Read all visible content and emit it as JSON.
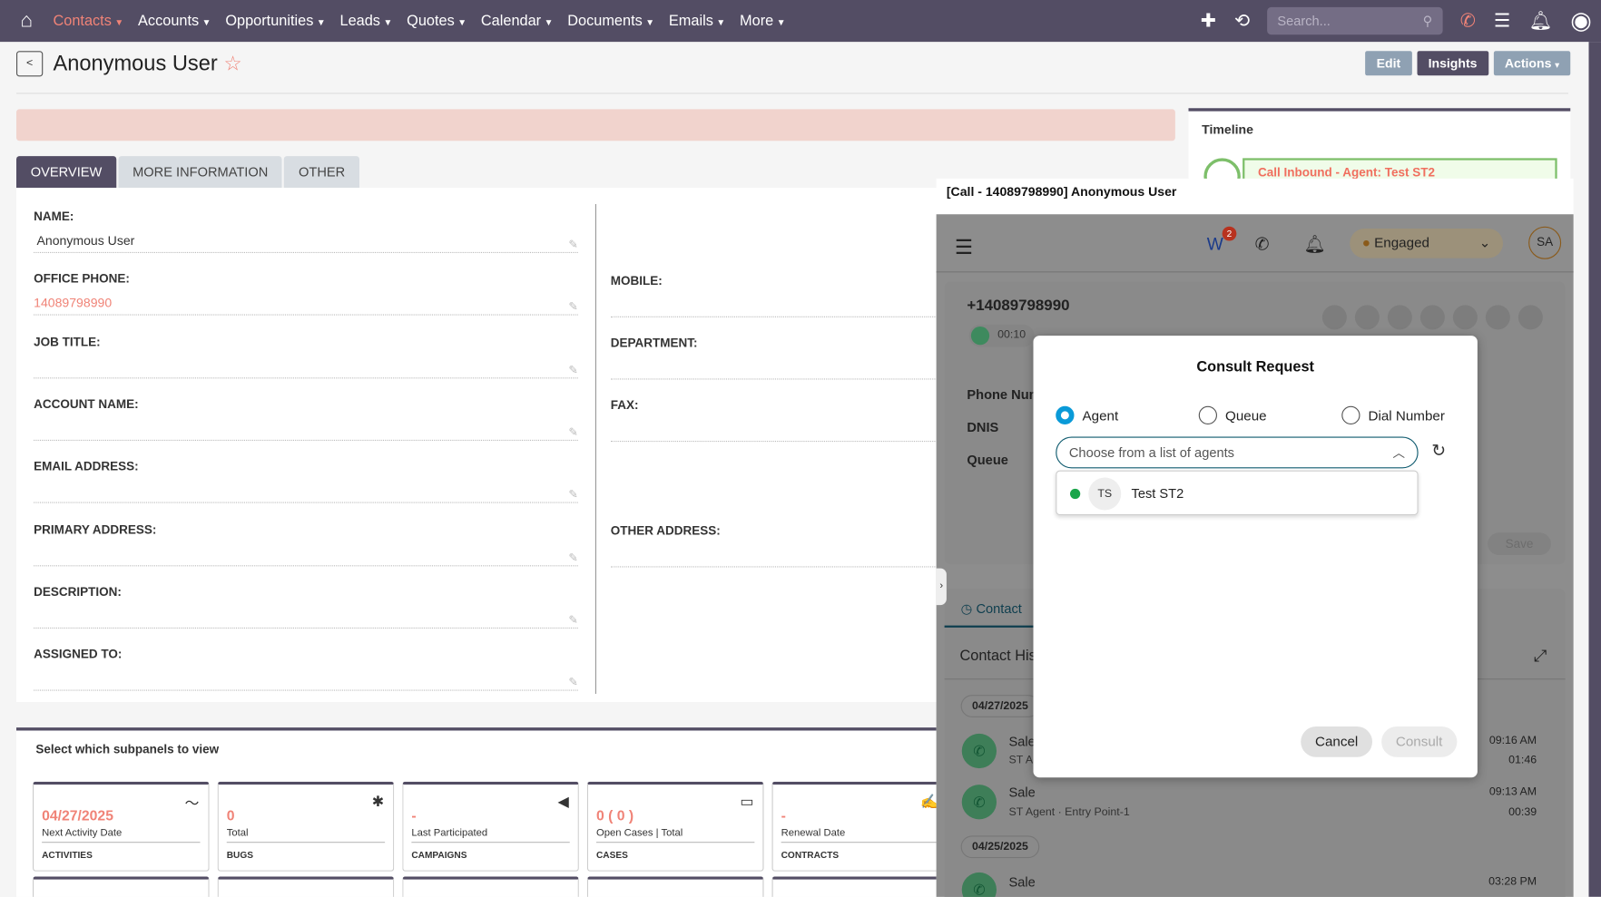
{
  "nav": {
    "items": [
      {
        "label": "Contacts",
        "active": true
      },
      {
        "label": "Accounts"
      },
      {
        "label": "Opportunities"
      },
      {
        "label": "Leads"
      },
      {
        "label": "Quotes"
      },
      {
        "label": "Calendar"
      },
      {
        "label": "Documents"
      },
      {
        "label": "Emails"
      },
      {
        "label": "More"
      }
    ],
    "search_placeholder": "Search..."
  },
  "record": {
    "title": "Anonymous User",
    "buttons": {
      "edit": "Edit",
      "insights": "Insights",
      "actions": "Actions"
    }
  },
  "tabs": [
    "OVERVIEW",
    "MORE INFORMATION",
    "OTHER"
  ],
  "fields_left": [
    {
      "label": "NAME:",
      "value": "Anonymous User"
    },
    {
      "label": "OFFICE PHONE:",
      "value": "14089798990",
      "link": true
    },
    {
      "label": "JOB TITLE:",
      "value": ""
    },
    {
      "label": "ACCOUNT NAME:",
      "value": ""
    },
    {
      "label": "EMAIL ADDRESS:",
      "value": ""
    },
    {
      "label": "PRIMARY ADDRESS:",
      "value": ""
    },
    {
      "label": "DESCRIPTION:",
      "value": ""
    },
    {
      "label": "ASSIGNED TO:",
      "value": ""
    }
  ],
  "fields_right": [
    {
      "label": "MOBILE:"
    },
    {
      "label": "DEPARTMENT:"
    },
    {
      "label": "FAX:"
    },
    {
      "label": "OTHER ADDRESS:"
    }
  ],
  "subpanels": {
    "heading": "Select which subpanels to view",
    "cards": [
      {
        "value": "04/27/2025",
        "sub": "Next Activity Date",
        "caption": "ACTIVITIES",
        "icon": "activity-icon"
      },
      {
        "value": "0",
        "sub": "Total",
        "caption": "BUGS",
        "icon": "bug-icon"
      },
      {
        "value": "-",
        "sub": "Last Participated",
        "caption": "CAMPAIGNS",
        "icon": "megaphone-icon"
      },
      {
        "value": "0 ( 0 )",
        "sub": "Open Cases | Total",
        "caption": "CASES",
        "icon": "folder-icon"
      },
      {
        "value": "-",
        "sub": "Renewal Date",
        "caption": "CONTRACTS",
        "icon": "signature-icon"
      }
    ]
  },
  "timeline": {
    "title": "Timeline",
    "event": "Call Inbound - Agent: Test ST2"
  },
  "widget": {
    "title": "[Call - 14089798990] Anonymous User",
    "badge": "2",
    "state": "Engaged",
    "avatar": "SA",
    "number": "+14089798990",
    "timer": "00:10",
    "labels": [
      "Phone Num",
      "DNIS",
      "Queue"
    ],
    "save": "Save",
    "contact_tab": "Contact",
    "history_title": "Contact His",
    "history": [
      {
        "date": "04/27/2025",
        "items": [
          {
            "title": "Sale",
            "sub": "ST A",
            "time": "09:16 AM",
            "dur": "01:46"
          },
          {
            "title": "Sale",
            "sub": "ST Agent · Entry Point-1",
            "time": "09:13 AM",
            "dur": "00:39"
          }
        ]
      },
      {
        "date": "04/25/2025",
        "items": [
          {
            "title": "Sale",
            "time": "03:28 PM"
          }
        ]
      }
    ]
  },
  "modal": {
    "title": "Consult Request",
    "options": [
      "Agent",
      "Queue",
      "Dial Number"
    ],
    "selected": "Agent",
    "placeholder": "Choose from a list of agents",
    "agent": {
      "initials": "TS",
      "name": "Test ST2",
      "status_color": "#1aa54a"
    },
    "cancel": "Cancel",
    "consult": "Consult"
  },
  "colors": {
    "nav": "#534d64",
    "accent": "#f08377",
    "primary_radio": "#0a9ad8"
  }
}
